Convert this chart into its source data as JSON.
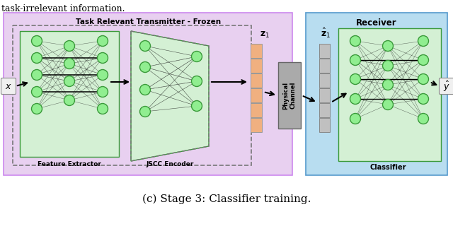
{
  "bg_color": "#ffffff",
  "purple_bg": "#e8d0f0",
  "blue_bg": "#b8ddf0",
  "green_bg": "#d4f0d4",
  "node_color": "#90EE90",
  "node_edge": "#3a9a3a",
  "channel_color": "#aaaaaa",
  "z1_color": "#f0b080",
  "top_text": "task-irrelevant information.",
  "title_text": "Task Relevant Transmitter - Frozen",
  "receiver_text": "Receiver",
  "feat_ext_text": "Feature Extractor",
  "jscc_text": "JSCC Encoder",
  "classifier_text": "Classifier",
  "channel_text": "Physical\nChannel",
  "caption": "(c) Stage 3: Classifier training.",
  "figsize": [
    6.4,
    3.44
  ],
  "dpi": 100
}
